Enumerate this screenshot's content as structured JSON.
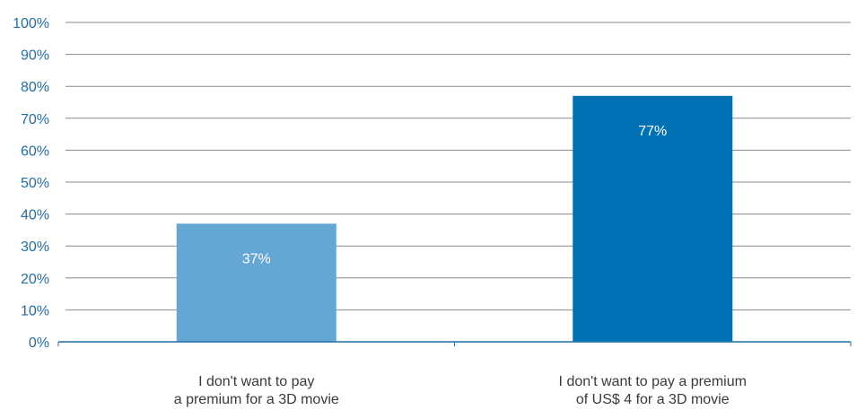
{
  "chart_data": {
    "type": "bar",
    "title": "",
    "xlabel": "",
    "ylabel": "",
    "ylim": [
      0,
      100
    ],
    "y_tick_values": [
      0,
      10,
      20,
      30,
      40,
      50,
      60,
      70,
      80,
      90,
      100
    ],
    "y_tick_labels": [
      "0%",
      "10%",
      "20%",
      "30%",
      "40%",
      "50%",
      "60%",
      "70%",
      "80%",
      "90%",
      "100%"
    ],
    "categories": [
      [
        "I don't want to pay",
        "a premium for a 3D movie"
      ],
      [
        "I don't want to pay a premium",
        "of US$ 4 for a 3D movie"
      ]
    ],
    "values": [
      37,
      77
    ],
    "data_labels": [
      "37%",
      "77%"
    ],
    "bar_colors": [
      "#64a7d4",
      "#0071b5"
    ],
    "grid": true,
    "legend": "none"
  },
  "colors": {
    "gridline": "#8a8a8a",
    "axis": "#1f6fa8",
    "tick_text": "#1f6fa8",
    "category_text": "#3a3a3a",
    "data_label_text": "#ffffff"
  }
}
